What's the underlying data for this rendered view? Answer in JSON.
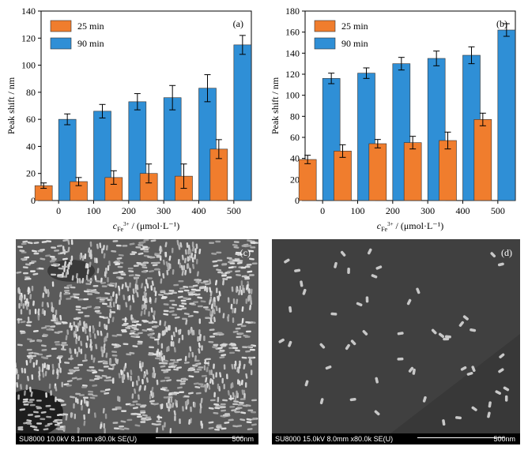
{
  "colors": {
    "orange": "#f07d2d",
    "blue": "#2f8fd6"
  },
  "chart_data": [
    {
      "type": "bar",
      "panel_label": "(a)",
      "categories": [
        "0",
        "100",
        "200",
        "300",
        "400",
        "500"
      ],
      "series": [
        {
          "name": "25 min",
          "values": [
            11,
            14,
            17,
            20,
            18,
            38
          ],
          "errors": [
            2,
            3,
            5,
            7,
            9,
            7
          ]
        },
        {
          "name": "90 min",
          "values": [
            60,
            66,
            73,
            76,
            83,
            115
          ],
          "errors": [
            4,
            5,
            6,
            9,
            10,
            7
          ]
        }
      ],
      "ylabel": "Peak shift / nm",
      "xlabel_parts": {
        "sym": "c",
        "sub": "Fe",
        "sup": "3+",
        "rest": " / (μmol·L⁻¹)"
      },
      "ylim": [
        0,
        140
      ],
      "yticks": [
        0,
        20,
        40,
        60,
        80,
        100,
        120,
        140
      ],
      "legend": "top-left"
    },
    {
      "type": "bar",
      "panel_label": "(b)",
      "categories": [
        "0",
        "100",
        "200",
        "300",
        "400",
        "500"
      ],
      "series": [
        {
          "name": "25 min",
          "values": [
            39,
            47,
            54,
            55,
            57,
            77
          ],
          "errors": [
            4,
            6,
            4,
            6,
            8,
            6
          ]
        },
        {
          "name": "90 min",
          "values": [
            116,
            121,
            130,
            135,
            138,
            162
          ],
          "errors": [
            5,
            5,
            6,
            7,
            8,
            6
          ]
        }
      ],
      "ylabel": "Peak shift / nm",
      "xlabel_parts": {
        "sym": "c",
        "sub": "Fe",
        "sup": "3+",
        "rest": " / (μmol·L⁻¹)"
      },
      "ylim": [
        0,
        180
      ],
      "yticks": [
        0,
        20,
        40,
        60,
        80,
        100,
        120,
        140,
        160,
        180
      ],
      "legend": "top-left"
    }
  ],
  "sem_images": [
    {
      "panel_label": "(c)",
      "info": "SU8000 10.0kV 8.1mm x80.0k SE(U)",
      "scale": "500nm"
    },
    {
      "panel_label": "(d)",
      "info": "SU8000 15.0kV 8.0mm x80.0k SE(U)",
      "scale": "500nm"
    }
  ]
}
